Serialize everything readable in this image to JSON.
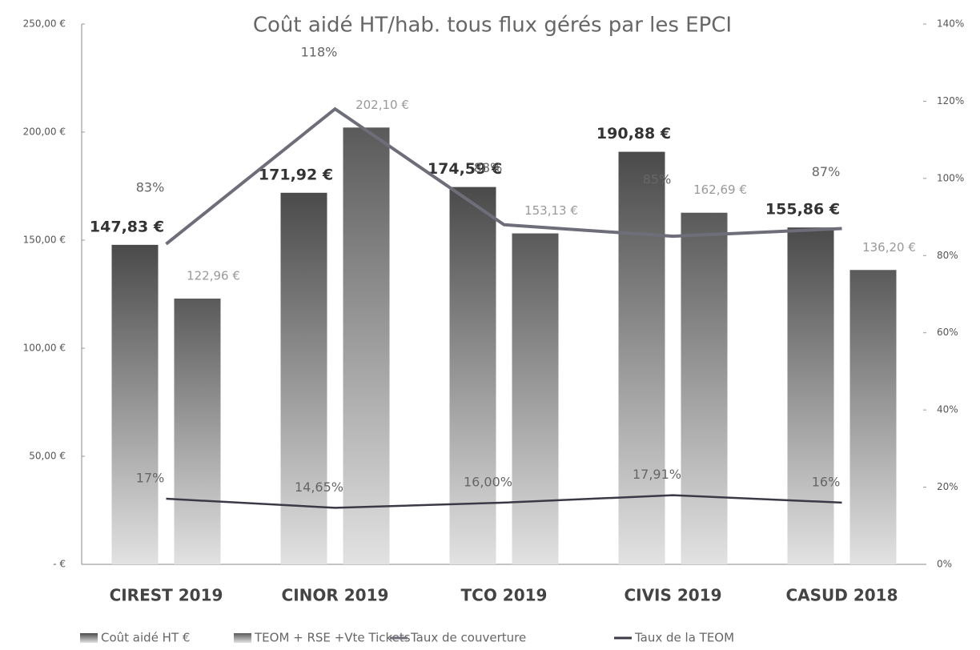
{
  "chart_data": {
    "type": "bar",
    "title": "Coût aidé HT/hab. tous flux gérés par les EPCI",
    "categories": [
      "CIREST 2019",
      "CINOR 2019",
      "TCO 2019",
      "CIVIS 2019",
      "CASUD 2018"
    ],
    "series": [
      {
        "name": "Coût aidé HT €",
        "color": "#4a4a4a",
        "type": "bar",
        "values": [
          147.83,
          171.92,
          174.59,
          190.88,
          155.86
        ],
        "value_labels": [
          "147,83 €",
          "171,92 €",
          "174,59 €",
          "190,88 €",
          "155,86 €"
        ]
      },
      {
        "name": "TEOM + RSE +Vte Tickets",
        "color": "#5a5a5a",
        "type": "bar",
        "values": [
          122.96,
          202.1,
          153.13,
          162.69,
          136.2
        ],
        "value_labels": [
          "122,96 €",
          "202,10 €",
          "153,13 €",
          "162,69 €",
          "136,20 €"
        ]
      },
      {
        "name": "Taux de couverture",
        "color": "#6e6e7a",
        "type": "line",
        "axis": "y2",
        "values": [
          83,
          118,
          88,
          85,
          87
        ],
        "value_labels": [
          "83%",
          "118%",
          "88%",
          "85%",
          "87%"
        ]
      },
      {
        "name": "Taux de la TEOM",
        "color": "#3a3a46",
        "type": "line",
        "axis": "y2",
        "values": [
          17,
          14.65,
          16.0,
          17.91,
          16
        ],
        "value_labels": [
          "17%",
          "14,65%",
          "16,00%",
          "17,91%",
          "16%"
        ]
      }
    ],
    "ylim": [
      0,
      250
    ],
    "yticks": [
      {
        "value": 0,
        "label": "- €"
      },
      {
        "value": 50,
        "label": "50,00 €"
      },
      {
        "value": 100,
        "label": "100,00 €"
      },
      {
        "value": 150,
        "label": "150,00 €"
      },
      {
        "value": 200,
        "label": "200,00 €"
      },
      {
        "value": 250,
        "label": "250,00 €"
      }
    ],
    "y2lim": [
      0,
      140
    ],
    "y2ticks": [
      {
        "value": 0,
        "label": "0%"
      },
      {
        "value": 20,
        "label": "20%"
      },
      {
        "value": 40,
        "label": "40%"
      },
      {
        "value": 60,
        "label": "60%"
      },
      {
        "value": 80,
        "label": "80%"
      },
      {
        "value": 100,
        "label": "100%"
      },
      {
        "value": 120,
        "label": "120%"
      },
      {
        "value": 140,
        "label": "140%"
      }
    ],
    "legend": "bottom"
  }
}
